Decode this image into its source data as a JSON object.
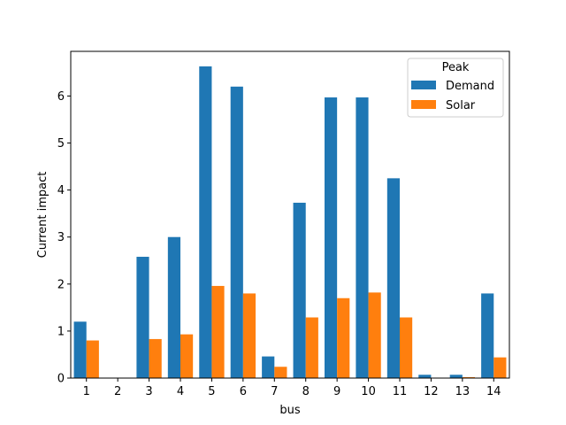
{
  "chart_data": {
    "type": "bar",
    "xlabel": "bus",
    "ylabel": "Current impact",
    "ylim": [
      0,
      6.95
    ],
    "yticks": [
      0,
      1,
      2,
      3,
      4,
      5,
      6
    ],
    "grid": false,
    "categories": [
      "1",
      "2",
      "3",
      "4",
      "5",
      "6",
      "7",
      "8",
      "9",
      "10",
      "11",
      "12",
      "13",
      "14"
    ],
    "series": [
      {
        "name": "Demand",
        "color": "#1f77b4",
        "values": [
          1.2,
          0.0,
          2.58,
          3.0,
          6.63,
          6.2,
          0.46,
          3.73,
          5.97,
          5.97,
          4.25,
          0.07,
          0.07,
          1.8
        ]
      },
      {
        "name": "Solar",
        "color": "#ff7f0e",
        "values": [
          0.8,
          0.0,
          0.83,
          0.93,
          1.96,
          1.8,
          0.24,
          1.29,
          1.7,
          1.82,
          1.29,
          0.0,
          0.02,
          0.44
        ]
      }
    ],
    "legend": {
      "title": "Peak",
      "placement": "upper right"
    }
  }
}
